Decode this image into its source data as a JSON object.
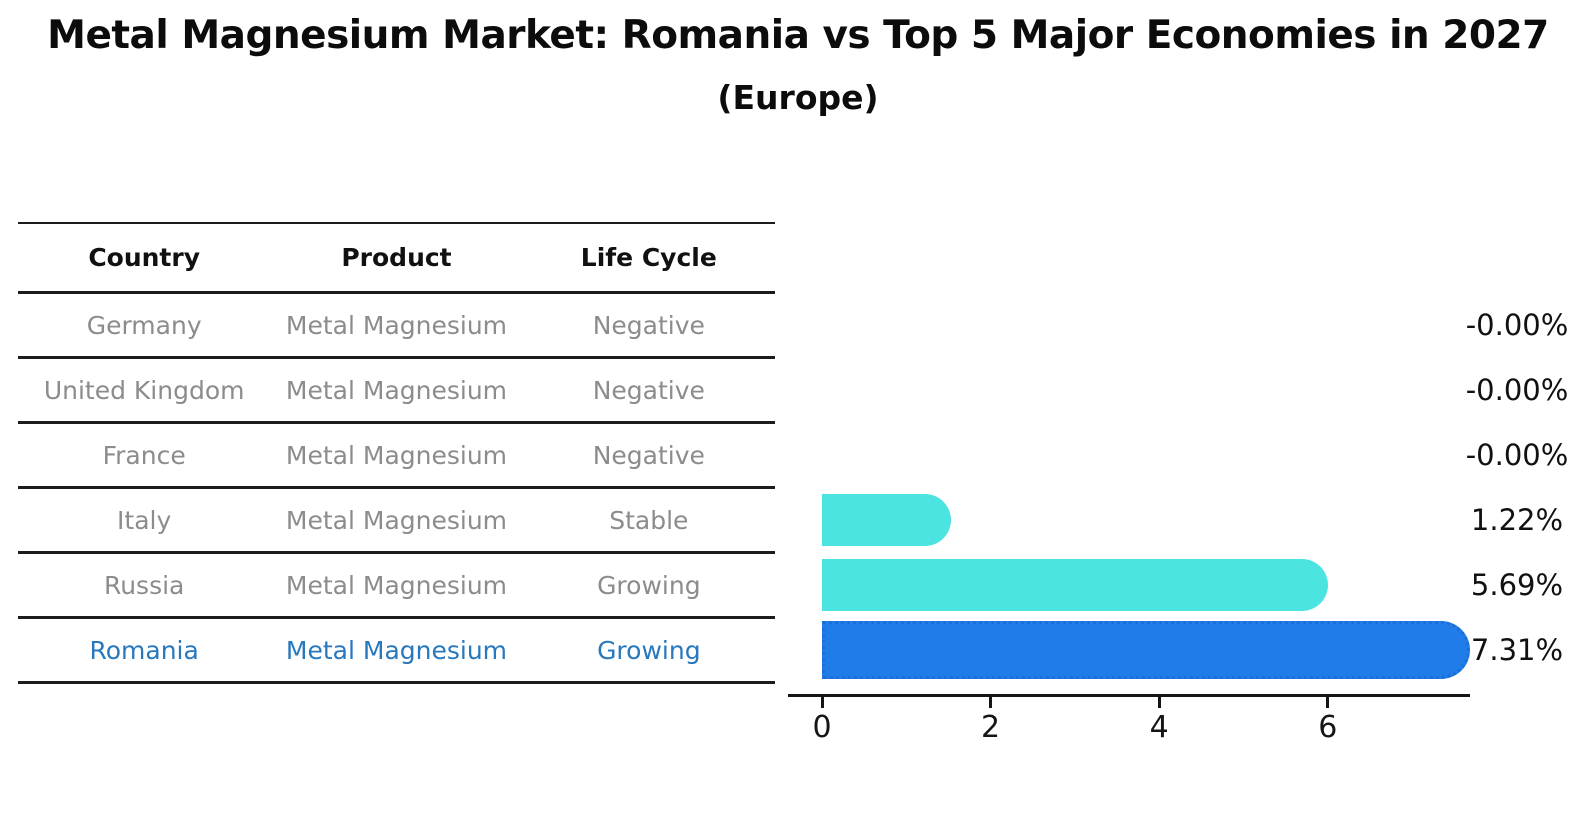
{
  "title": "Metal Magnesium Market: Romania vs Top 5 Major Economies in 2027",
  "subtitle": "(Europe)",
  "table": {
    "headers": [
      "Country",
      "Product",
      "Life Cycle"
    ],
    "rows": [
      {
        "country": "Germany",
        "product": "Metal Magnesium",
        "life_cycle": "Negative",
        "highlighted": false
      },
      {
        "country": "United Kingdom",
        "product": "Metal Magnesium",
        "life_cycle": "Negative",
        "highlighted": false
      },
      {
        "country": "France",
        "product": "Metal Magnesium",
        "life_cycle": "Negative",
        "highlighted": false
      },
      {
        "country": "Italy",
        "product": "Metal Magnesium",
        "life_cycle": "Stable",
        "highlighted": false
      },
      {
        "country": "Russia",
        "product": "Metal Magnesium",
        "life_cycle": "Growing",
        "highlighted": false
      },
      {
        "country": "Romania",
        "product": "Metal Magnesium",
        "life_cycle": "Growing",
        "highlighted": true
      }
    ]
  },
  "chart_data": {
    "type": "bar",
    "orientation": "horizontal",
    "title": "Metal Magnesium Market: Romania vs Top 5 Major Economies in 2027",
    "subtitle": "(Europe)",
    "categories": [
      "Germany",
      "United Kingdom",
      "France",
      "Italy",
      "Russia",
      "Romania"
    ],
    "values": [
      -0.0,
      -0.0,
      -0.0,
      1.22,
      5.69,
      7.31
    ],
    "value_labels": [
      "-0.00%",
      "-0.00%",
      "-0.00%",
      "1.22%",
      "5.69%",
      "7.31%"
    ],
    "xticks": [
      0,
      2,
      4,
      6
    ],
    "xtick_labels": [
      "0",
      "2",
      "4",
      "6"
    ],
    "xlim": [
      0,
      7.7
    ],
    "grid": false,
    "legend": false,
    "highlight_index": 5,
    "default_bar_color": "#4be4e1",
    "highlight_bar_color": "#1f7ce8",
    "highlight_border_style": "dotted"
  },
  "colors": {
    "title_text": "#0c0c0c",
    "table_line": "#1c1c1c",
    "row_text": "#8c8c8c",
    "highlight_row_text": "#2878be",
    "bar_cyan": "#4be4e1",
    "bar_blue": "#1f7ce8",
    "axis": "#151515"
  }
}
